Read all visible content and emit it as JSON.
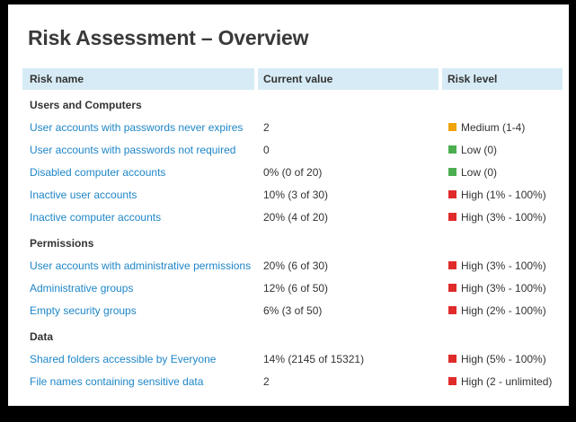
{
  "title": "Risk Assessment – Overview",
  "table": {
    "columns": [
      "Risk name",
      "Current value",
      "Risk level"
    ],
    "sections": [
      {
        "name": "Users and Computers",
        "rows": [
          {
            "risk_name": "User accounts with passwords never expires",
            "current_value": "2",
            "risk_level": "Medium (1-4)",
            "level": "medium"
          },
          {
            "risk_name": "User accounts with passwords not required",
            "current_value": "0",
            "risk_level": "Low (0)",
            "level": "low"
          },
          {
            "risk_name": "Disabled computer accounts",
            "current_value": "0% (0 of 20)",
            "risk_level": "Low (0)",
            "level": "low"
          },
          {
            "risk_name": "Inactive user accounts",
            "current_value": "10% (3 of 30)",
            "risk_level": "High (1% - 100%)",
            "level": "high"
          },
          {
            "risk_name": "Inactive computer accounts",
            "current_value": "20% (4 of 20)",
            "risk_level": "High (3% - 100%)",
            "level": "high"
          }
        ]
      },
      {
        "name": "Permissions",
        "rows": [
          {
            "risk_name": "User accounts with administrative permissions",
            "current_value": "20% (6 of 30)",
            "risk_level": "High (3% - 100%)",
            "level": "high"
          },
          {
            "risk_name": "Administrative groups",
            "current_value": "12% (6 of 50)",
            "risk_level": "High (3% - 100%)",
            "level": "high"
          },
          {
            "risk_name": "Empty security groups",
            "current_value": "6% (3 of 50)",
            "risk_level": "High (2% - 100%)",
            "level": "high"
          }
        ]
      },
      {
        "name": "Data",
        "rows": [
          {
            "risk_name": "Shared folders accessible by Everyone",
            "current_value": "14% (2145 of 15321)",
            "risk_level": "High (5% - 100%)",
            "level": "high"
          },
          {
            "risk_name": "File names containing sensitive data",
            "current_value": "2",
            "risk_level": "High (2 - unlimited)",
            "level": "high"
          }
        ]
      }
    ]
  },
  "colors": {
    "frame": "#000000",
    "card_bg": "#FFFFFF",
    "header_bg": "#D6EBF5",
    "link": "#1E86C8",
    "title_text": "#3A3A3A",
    "body_text": "#333333",
    "medium": "#F0A30A",
    "low": "#4BAE4F",
    "high": "#E02B2B"
  }
}
